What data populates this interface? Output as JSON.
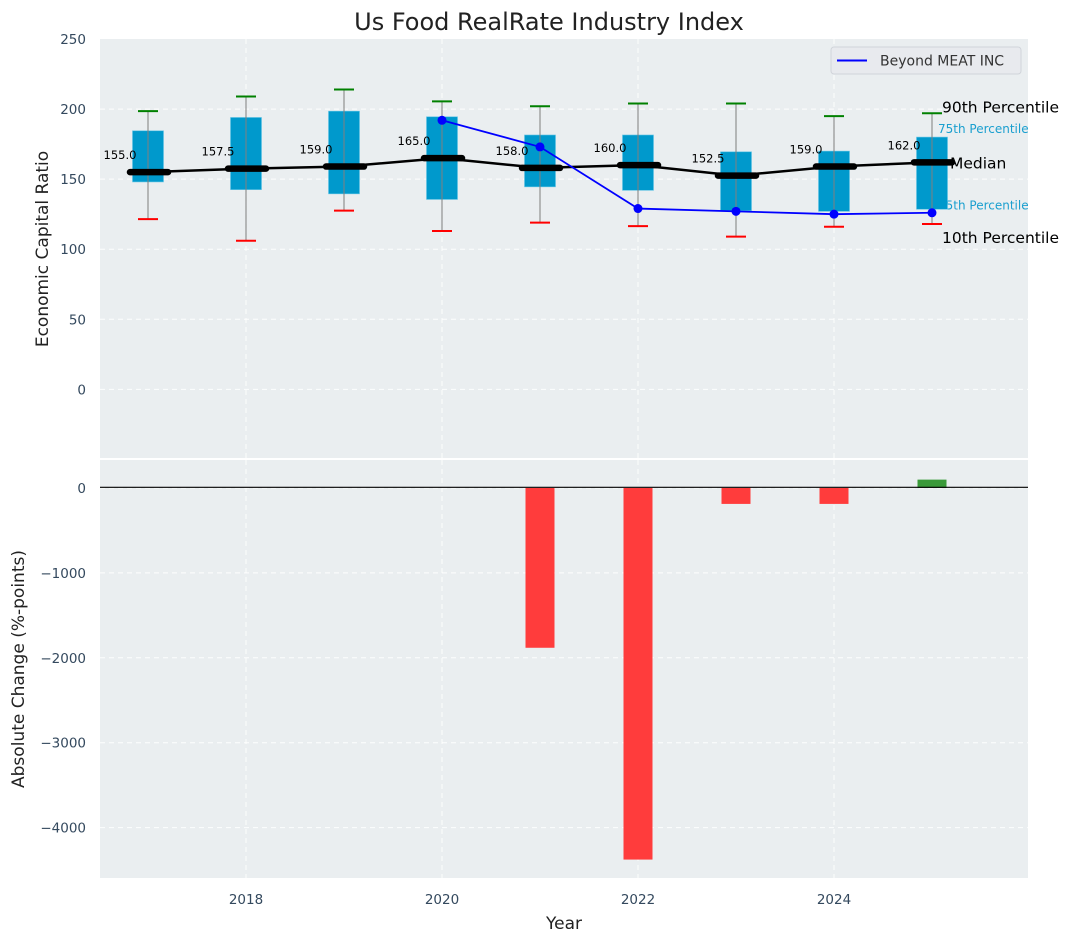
{
  "chart_data": [
    {
      "type": "box",
      "panel": "top",
      "title": "Us Food RealRate Industry Index",
      "xlabel": "",
      "ylabel": "Economic Capital Ratio",
      "ylim": [
        -49,
        250
      ],
      "xlim": [
        2016.5,
        2025.95
      ],
      "yticks": [
        0,
        50,
        100,
        150,
        200,
        250
      ],
      "grid": true,
      "categories": [
        2017,
        2018,
        2019,
        2020,
        2021,
        2022,
        2023,
        2024,
        2025
      ],
      "percentiles": {
        "p10": [
          121.5,
          106,
          127.5,
          113,
          119,
          116.5,
          109,
          116,
          118
        ],
        "p25": [
          148,
          142.5,
          139.5,
          135.5,
          144.5,
          142,
          127.5,
          127,
          128.5
        ],
        "median": [
          155.0,
          157.5,
          159.0,
          165.0,
          158.0,
          160.0,
          152.5,
          159.0,
          162.0
        ],
        "p75": [
          184.5,
          194,
          198.5,
          194.5,
          181.5,
          181.5,
          169.5,
          170,
          180
        ],
        "p90": [
          198.5,
          209,
          214,
          205.5,
          202,
          204,
          204,
          195,
          197
        ]
      },
      "median_labels": [
        "155.0",
        "157.5",
        "159.0",
        "165.0",
        "158.0",
        "160.0",
        "152.5",
        "159.0",
        "162.0"
      ],
      "series": [
        {
          "name": "Beyond MEAT INC",
          "x": [
            2020,
            2021,
            2022,
            2023,
            2024,
            2025
          ],
          "values": [
            192,
            173,
            129,
            127,
            125,
            126
          ],
          "color": "#0000ff"
        }
      ],
      "annotations": [
        "90th Percentile",
        "75th Percentile",
        "Median",
        "25th Percentile",
        "10th Percentile"
      ],
      "legend": {
        "entries": [
          "Beyond MEAT INC"
        ],
        "placement": "top-right"
      },
      "colors": {
        "box": "#0099cc",
        "p90_cap": "#008000",
        "p10_cap": "#ff0000",
        "median": "#000000",
        "whisker": "#808080"
      }
    },
    {
      "type": "bar",
      "panel": "bottom",
      "xlabel": "Year",
      "ylabel": "Absolute Change (%-points)",
      "ylim": [
        -4593,
        329
      ],
      "yticks": [
        0,
        -1000,
        -2000,
        -3000,
        -4000
      ],
      "ytick_labels": [
        "0",
        "−1000",
        "−2000",
        "−3000",
        "−4000"
      ],
      "xticks": [
        2018,
        2020,
        2022,
        2024
      ],
      "xtick_labels": [
        "2018",
        "2020",
        "2022",
        "2024"
      ],
      "grid": true,
      "categories": [
        2021,
        2022,
        2023,
        2024,
        2025
      ],
      "values": [
        -1882,
        -4376,
        -188,
        -188,
        98
      ],
      "colors": {
        "negative": "#ff3c3c",
        "positive": "#3a9a3a"
      }
    }
  ]
}
